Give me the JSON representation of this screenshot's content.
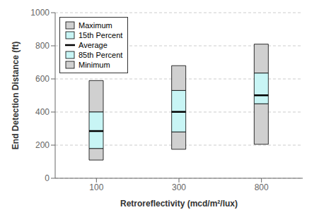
{
  "chart_data": {
    "type": "range_bar",
    "xlabel": "Retroreflectivity (mcd/m²/lux)",
    "ylabel": "End Detection Distance (ft)",
    "categories": [
      100,
      300,
      800
    ],
    "series": [
      {
        "name": "Maximum",
        "color": "#d0d0d0",
        "values": [
          590,
          680,
          810
        ]
      },
      {
        "name": "15th Percent",
        "color": "#c8f5f5",
        "values": [
          400,
          530,
          635
        ]
      },
      {
        "name": "Average",
        "color": "#000000",
        "values": [
          285,
          401,
          501
        ]
      },
      {
        "name": "85th Percent",
        "color": "#c8f5f5",
        "values": [
          180,
          280,
          450
        ]
      },
      {
        "name": "Minimum",
        "color": "#d0d0d0",
        "values": [
          110,
          175,
          205
        ]
      }
    ],
    "ylim": [
      0,
      1000
    ],
    "yticks": [
      0,
      200,
      400,
      600,
      800,
      1000
    ],
    "grid": true,
    "legend": "upper left"
  }
}
